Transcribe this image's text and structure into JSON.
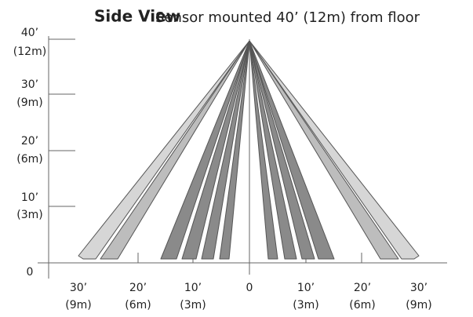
{
  "title": {
    "bold": "Side View",
    "subtitle": "Sensor mounted 40’ (12m) from floor"
  },
  "y_labels": [
    {
      "feet": "40’",
      "meters": "(12m)"
    },
    {
      "feet": "30’",
      "meters": "(9m)"
    },
    {
      "feet": "20’",
      "meters": "(6m)"
    },
    {
      "feet": "10’",
      "meters": "(3m)"
    },
    {
      "feet": "0"
    }
  ],
  "x_labels": [
    {
      "feet": "30’",
      "meters": "(9m)"
    },
    {
      "feet": "20’",
      "meters": "(6m)"
    },
    {
      "feet": "10’",
      "meters": "(3m)"
    },
    {
      "feet": "0"
    },
    {
      "feet": "10’",
      "meters": "(3m)"
    },
    {
      "feet": "20’",
      "meters": "(6m)"
    },
    {
      "feet": "30’",
      "meters": "(9m)"
    }
  ]
}
